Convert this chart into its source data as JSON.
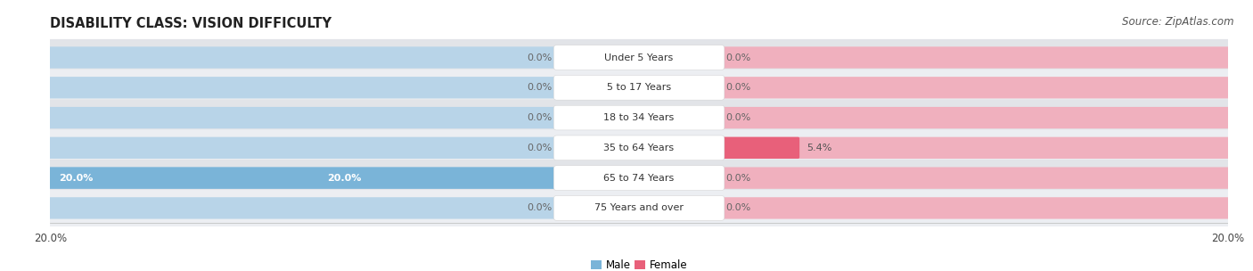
{
  "title": "DISABILITY CLASS: VISION DIFFICULTY",
  "source": "Source: ZipAtlas.com",
  "categories": [
    "Under 5 Years",
    "5 to 17 Years",
    "18 to 34 Years",
    "35 to 64 Years",
    "65 to 74 Years",
    "75 Years and over"
  ],
  "male_values": [
    0.0,
    0.0,
    0.0,
    0.0,
    20.0,
    0.0
  ],
  "female_values": [
    0.0,
    0.0,
    0.0,
    5.4,
    0.0,
    0.0
  ],
  "male_color": "#7ab4d8",
  "female_color": "#e8607a",
  "male_color_light": "#b8d4e8",
  "female_color_light": "#f0b0be",
  "row_bg_color_dark": "#e2e4e8",
  "row_bg_color_light": "#eceef2",
  "xlim": 20.0,
  "title_fontsize": 10.5,
  "source_fontsize": 8.5,
  "label_fontsize": 8,
  "tick_fontsize": 8.5,
  "background_color": "#ffffff",
  "center_label_bg": "#ffffff"
}
